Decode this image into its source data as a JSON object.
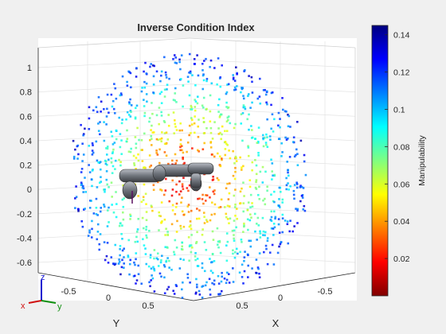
{
  "chart_data": {
    "type": "scatter",
    "title": "Inverse Condition Index",
    "xlabel": "X",
    "ylabel": "Y",
    "zlabel": "",
    "z_ticks": [
      "1",
      "0.8",
      "0.6",
      "0.4",
      "0.2",
      "0",
      "-0.2",
      "-0.4",
      "-0.6"
    ],
    "z_tick_values": [
      1,
      0.8,
      0.6,
      0.4,
      0.2,
      0,
      -0.2,
      -0.4,
      -0.6
    ],
    "y_ticks": [
      "-0.5",
      "0",
      "0.5"
    ],
    "y_tick_values": [
      -0.5,
      0,
      0.5
    ],
    "x_ticks": [
      "0.5",
      "0",
      "-0.5"
    ],
    "x_tick_values": [
      0.5,
      0,
      -0.5
    ],
    "xlim": [
      -0.75,
      0.75
    ],
    "ylim": [
      -0.75,
      0.75
    ],
    "zlim": [
      -0.68,
      1.12
    ],
    "grid": true,
    "workspace": "sphere of sample points colored by manipulability",
    "colorbar": {
      "label": "Manipulability",
      "colormap": "jet (reversed)",
      "ticks": [
        "0.14",
        "0.12",
        "0.1",
        "0.08",
        "0.06",
        "0.04",
        "0.02"
      ],
      "tick_values": [
        0.14,
        0.12,
        0.1,
        0.08,
        0.06,
        0.04,
        0.02
      ],
      "range": [
        0,
        0.145
      ]
    },
    "triad": {
      "x": "x",
      "y": "y",
      "z": "z"
    }
  }
}
